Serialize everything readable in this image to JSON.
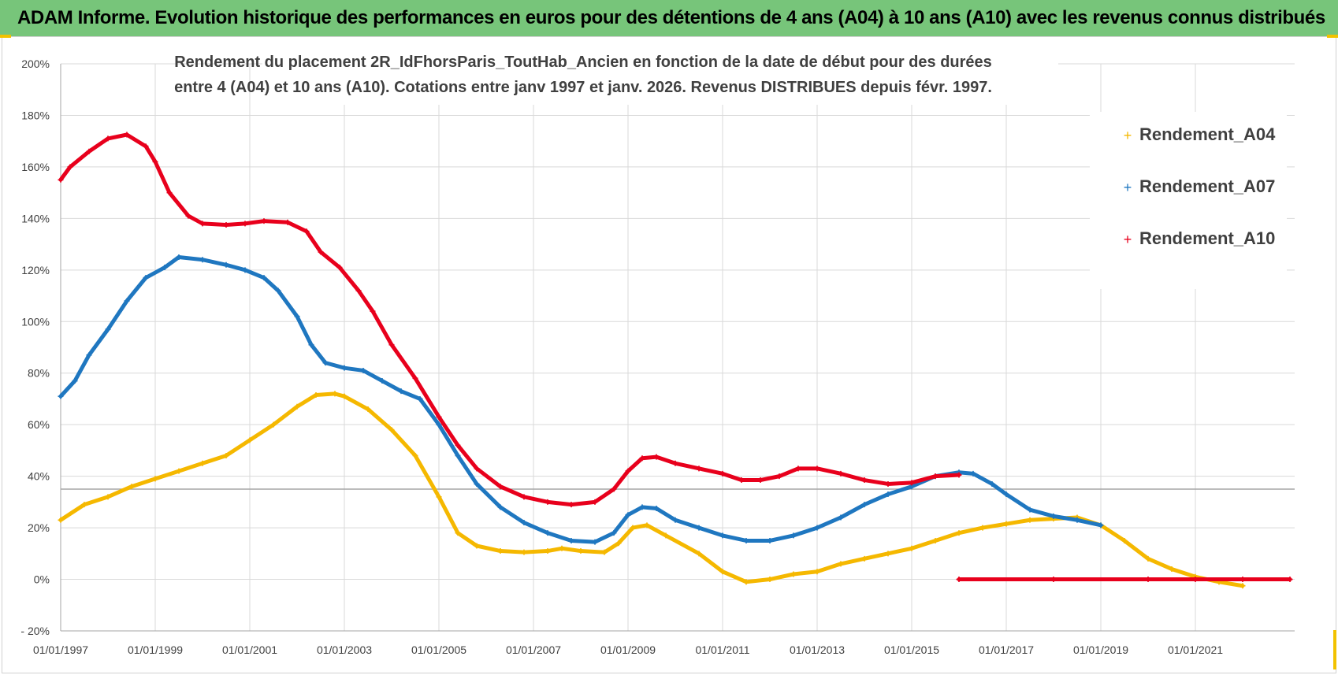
{
  "header": {
    "title": "ADAM Informe. Evolution historique des performances en euros pour des détentions de 4 ans (A04) à 10 ans (A10) avec les revenus connus distribués"
  },
  "colors": {
    "banner": "#77c57a",
    "grid": "#d9d9d9",
    "axis": "#a6a6a6",
    "corner_marks": "#f2c200"
  },
  "chart_data": {
    "type": "scatter",
    "title_lines": [
      "Rendement du placement 2R_IdFhorsParis_ToutHab_Ancien en fonction de la date de début pour des durées",
      "entre 4 (A04) et 10 ans (A10).  Cotations entre janv 1997 et janv. 2026. Revenus DISTRIBUES depuis févr. 1997."
    ],
    "xlabel": "",
    "ylabel": "",
    "x_tick_labels": [
      "01/01/1997",
      "01/01/1999",
      "01/01/2001",
      "01/01/2003",
      "01/01/2005",
      "01/01/2007",
      "01/01/2009",
      "01/01/2011",
      "01/01/2013",
      "01/01/2015",
      "01/01/2017",
      "01/01/2019",
      "01/01/2021"
    ],
    "x_ticks": [
      1997,
      1999,
      2001,
      2003,
      2005,
      2007,
      2009,
      2011,
      2013,
      2015,
      2017,
      2019,
      2021
    ],
    "xlim": [
      1997,
      2023.1
    ],
    "y_tick_labels": [
      "- 20%",
      "0%",
      "20%",
      "40%",
      "60%",
      "80%",
      "100%",
      "120%",
      "140%",
      "160%",
      "180%",
      "200%"
    ],
    "y_ticks": [
      -20,
      0,
      20,
      40,
      60,
      80,
      100,
      120,
      140,
      160,
      180,
      200
    ],
    "ylim": [
      -20,
      200
    ],
    "reference_line_y": 35,
    "grid": true,
    "legend_position": "top-right",
    "series": [
      {
        "name": "Rendement_A04",
        "color": "#f5b800",
        "points": [
          [
            1997.0,
            23
          ],
          [
            1997.5,
            29
          ],
          [
            1998.0,
            32
          ],
          [
            1998.5,
            36
          ],
          [
            1999.0,
            39
          ],
          [
            1999.5,
            42
          ],
          [
            2000.0,
            45
          ],
          [
            2000.5,
            48
          ],
          [
            2001.0,
            54
          ],
          [
            2001.5,
            60
          ],
          [
            2002.0,
            67
          ],
          [
            2002.4,
            71.5
          ],
          [
            2002.8,
            72
          ],
          [
            2003.0,
            71
          ],
          [
            2003.5,
            66
          ],
          [
            2004.0,
            58
          ],
          [
            2004.5,
            48
          ],
          [
            2005.0,
            32
          ],
          [
            2005.4,
            18
          ],
          [
            2005.8,
            13
          ],
          [
            2006.3,
            11
          ],
          [
            2006.8,
            10.5
          ],
          [
            2007.3,
            11
          ],
          [
            2007.6,
            12
          ],
          [
            2008.0,
            11
          ],
          [
            2008.5,
            10.5
          ],
          [
            2008.8,
            14
          ],
          [
            2009.1,
            20
          ],
          [
            2009.4,
            21
          ],
          [
            2009.8,
            17
          ],
          [
            2010.5,
            10
          ],
          [
            2011.0,
            3
          ],
          [
            2011.5,
            -1
          ],
          [
            2012.0,
            0
          ],
          [
            2012.5,
            2
          ],
          [
            2013.0,
            3
          ],
          [
            2013.5,
            6
          ],
          [
            2014.0,
            8
          ],
          [
            2014.5,
            10
          ],
          [
            2015.0,
            12
          ],
          [
            2015.5,
            15
          ],
          [
            2016.0,
            18
          ],
          [
            2016.5,
            20
          ],
          [
            2017.0,
            21.5
          ],
          [
            2017.5,
            23
          ],
          [
            2018.0,
            23.5
          ],
          [
            2018.5,
            24
          ],
          [
            2019.0,
            21
          ],
          [
            2019.5,
            15
          ],
          [
            2020.0,
            8
          ],
          [
            2020.5,
            4
          ],
          [
            2021.0,
            1
          ],
          [
            2021.5,
            -1
          ],
          [
            2022.0,
            -2.5
          ]
        ]
      },
      {
        "name": "Rendement_A07",
        "color": "#1f77c0",
        "points": [
          [
            1997.0,
            71
          ],
          [
            1997.3,
            77
          ],
          [
            1997.6,
            87
          ],
          [
            1998.0,
            97
          ],
          [
            1998.4,
            108
          ],
          [
            1998.8,
            117
          ],
          [
            1999.2,
            121
          ],
          [
            1999.5,
            125
          ],
          [
            2000.0,
            124
          ],
          [
            2000.5,
            122
          ],
          [
            2000.9,
            120
          ],
          [
            2001.3,
            117
          ],
          [
            2001.6,
            112
          ],
          [
            2002.0,
            102
          ],
          [
            2002.3,
            91
          ],
          [
            2002.6,
            84
          ],
          [
            2003.0,
            82
          ],
          [
            2003.4,
            81
          ],
          [
            2003.8,
            77
          ],
          [
            2004.2,
            73
          ],
          [
            2004.6,
            70
          ],
          [
            2005.0,
            60
          ],
          [
            2005.4,
            48
          ],
          [
            2005.8,
            37
          ],
          [
            2006.3,
            28
          ],
          [
            2006.8,
            22
          ],
          [
            2007.3,
            18
          ],
          [
            2007.8,
            15
          ],
          [
            2008.3,
            14.5
          ],
          [
            2008.7,
            18
          ],
          [
            2009.0,
            25
          ],
          [
            2009.3,
            28
          ],
          [
            2009.6,
            27.5
          ],
          [
            2010.0,
            23
          ],
          [
            2010.5,
            20
          ],
          [
            2011.0,
            17
          ],
          [
            2011.5,
            15
          ],
          [
            2012.0,
            15
          ],
          [
            2012.5,
            17
          ],
          [
            2013.0,
            20
          ],
          [
            2013.5,
            24
          ],
          [
            2014.0,
            29
          ],
          [
            2014.5,
            33
          ],
          [
            2015.0,
            36
          ],
          [
            2015.5,
            40
          ],
          [
            2016.0,
            41.5
          ],
          [
            2016.3,
            41
          ],
          [
            2016.7,
            37
          ],
          [
            2017.0,
            33
          ],
          [
            2017.5,
            27
          ],
          [
            2018.0,
            24.5
          ],
          [
            2018.5,
            23
          ],
          [
            2019.0,
            21
          ]
        ]
      },
      {
        "name": "Rendement_A10",
        "color": "#e8001c",
        "points": [
          [
            1997.0,
            155
          ],
          [
            1997.2,
            160
          ],
          [
            1997.6,
            166
          ],
          [
            1998.0,
            171
          ],
          [
            1998.4,
            172.5
          ],
          [
            1998.8,
            168
          ],
          [
            1999.0,
            162
          ],
          [
            1999.3,
            150
          ],
          [
            1999.7,
            141
          ],
          [
            2000.0,
            138
          ],
          [
            2000.5,
            137.5
          ],
          [
            2000.9,
            138
          ],
          [
            2001.3,
            139
          ],
          [
            2001.8,
            138.5
          ],
          [
            2002.2,
            135
          ],
          [
            2002.5,
            127
          ],
          [
            2002.9,
            121
          ],
          [
            2003.3,
            112
          ],
          [
            2003.6,
            104
          ],
          [
            2004.0,
            91
          ],
          [
            2004.5,
            78
          ],
          [
            2005.0,
            63
          ],
          [
            2005.4,
            52
          ],
          [
            2005.8,
            43
          ],
          [
            2006.3,
            36
          ],
          [
            2006.8,
            32
          ],
          [
            2007.3,
            30
          ],
          [
            2007.8,
            29
          ],
          [
            2008.3,
            30
          ],
          [
            2008.7,
            35
          ],
          [
            2009.0,
            42
          ],
          [
            2009.3,
            47
          ],
          [
            2009.6,
            47.5
          ],
          [
            2010.0,
            45
          ],
          [
            2010.5,
            43
          ],
          [
            2011.0,
            41
          ],
          [
            2011.4,
            38.5
          ],
          [
            2011.8,
            38.5
          ],
          [
            2012.2,
            40
          ],
          [
            2012.6,
            43
          ],
          [
            2013.0,
            43
          ],
          [
            2013.5,
            41
          ],
          [
            2014.0,
            38.5
          ],
          [
            2014.5,
            37
          ],
          [
            2015.0,
            37.5
          ],
          [
            2015.5,
            40
          ],
          [
            2016.0,
            40.5
          ],
          [
            2016.0,
            0
          ],
          [
            2018.0,
            0
          ],
          [
            2020.0,
            0
          ],
          [
            2021.0,
            0
          ],
          [
            2022.0,
            0
          ],
          [
            2023.0,
            0
          ]
        ]
      }
    ]
  }
}
